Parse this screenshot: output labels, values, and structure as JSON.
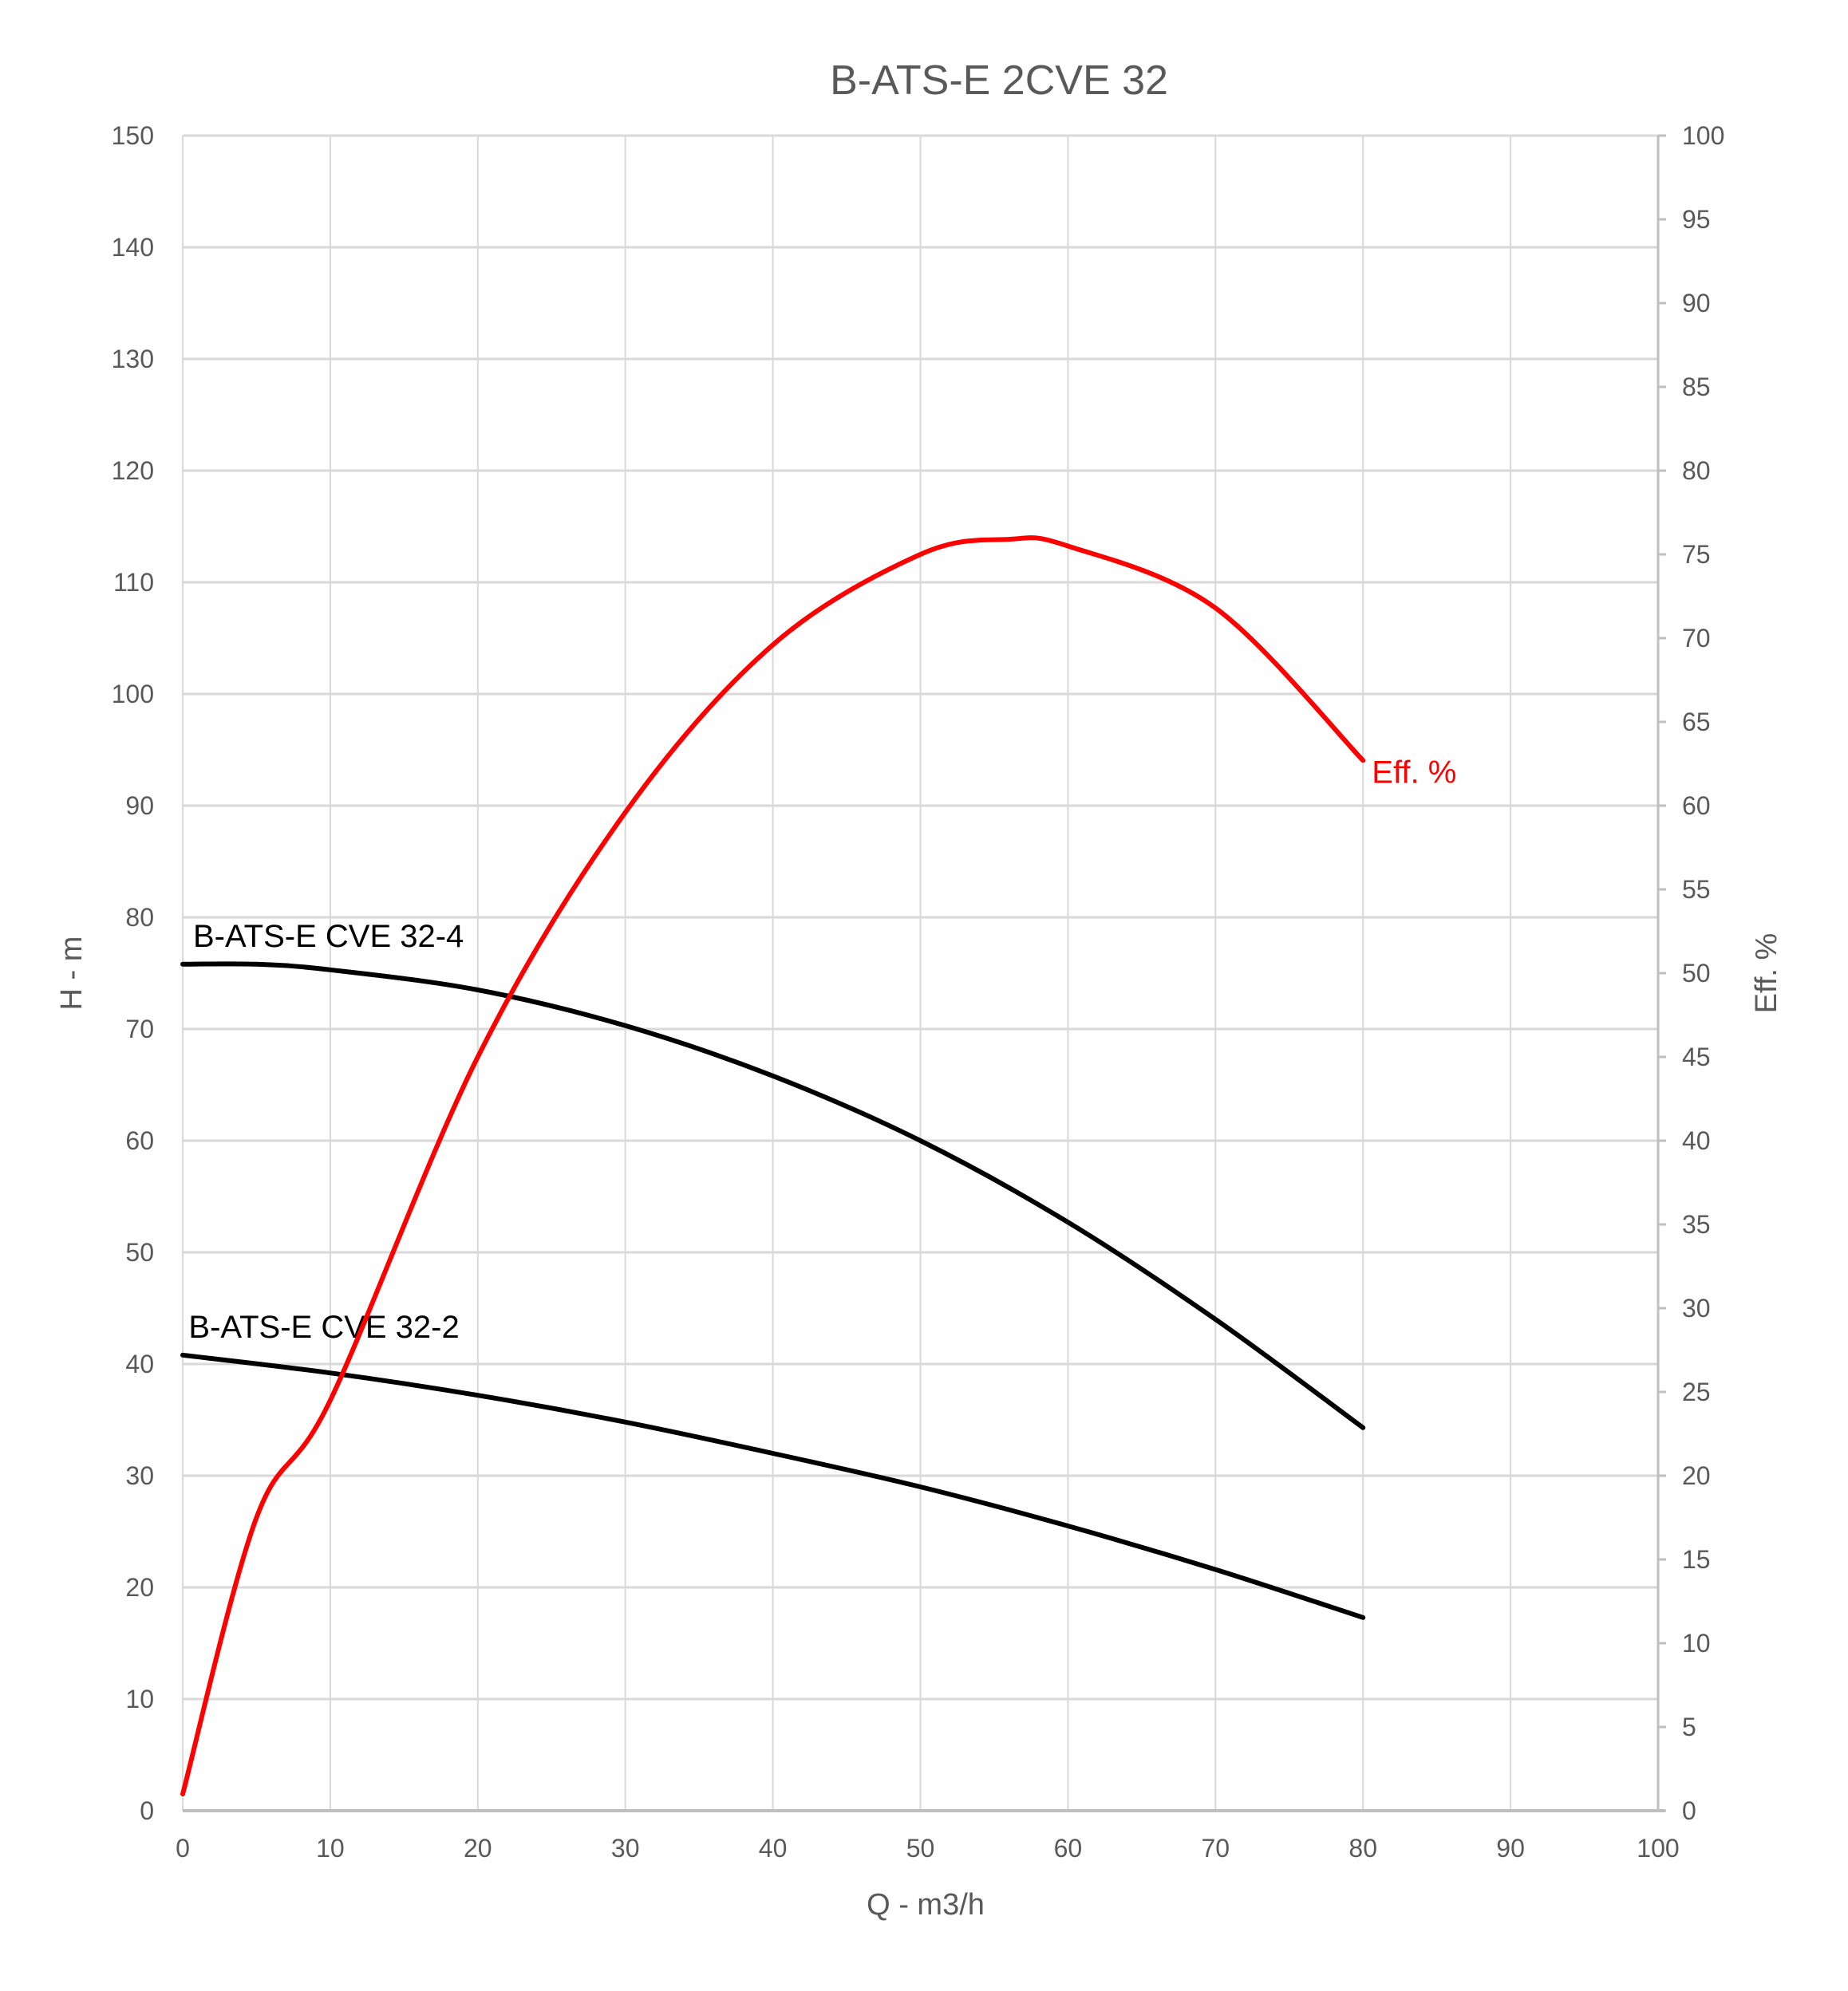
{
  "chart_data": {
    "type": "line",
    "title": "B-ATS-E 2CVE 32",
    "xlabel": "Q - m3/h",
    "ylabel": "H - m",
    "y2label": "Eff. %",
    "xlim": [
      0,
      100
    ],
    "ylim": [
      0,
      150
    ],
    "y2lim": [
      0,
      100
    ],
    "xticks": [
      0,
      10,
      20,
      30,
      40,
      50,
      60,
      70,
      80,
      90,
      100
    ],
    "yticks": [
      0,
      10,
      20,
      30,
      40,
      50,
      60,
      70,
      80,
      90,
      100,
      110,
      120,
      130,
      140,
      150
    ],
    "y2ticks": [
      0,
      5,
      10,
      15,
      20,
      25,
      30,
      35,
      40,
      45,
      50,
      55,
      60,
      65,
      70,
      75,
      80,
      85,
      90,
      95,
      100
    ],
    "grid": true,
    "series": [
      {
        "name": "B-ATS-E CVE 32-4",
        "axis": "left",
        "color": "#000000",
        "x": [
          0,
          5,
          10,
          20,
          30,
          40,
          50,
          60,
          70,
          80
        ],
        "y": [
          75.8,
          75.8,
          75.3,
          73.5,
          70.3,
          65.8,
          60.0,
          52.7,
          44.0,
          34.3
        ]
      },
      {
        "name": "B-ATS-E CVE 32-2",
        "axis": "left",
        "color": "#000000",
        "x": [
          0,
          10,
          20,
          30,
          40,
          50,
          60,
          70,
          80
        ],
        "y": [
          40.8,
          39.2,
          37.2,
          34.8,
          32.0,
          29.0,
          25.5,
          21.6,
          17.3
        ]
      },
      {
        "name": "Eff. %",
        "axis": "right",
        "color": "#ff0000",
        "x": [
          0,
          5,
          10,
          20,
          30,
          40,
          50,
          56,
          60,
          70,
          80
        ],
        "y": [
          1,
          17.5,
          24.5,
          45,
          59.6,
          69.6,
          75,
          75.9,
          75.5,
          71.8,
          62.7
        ]
      }
    ]
  }
}
